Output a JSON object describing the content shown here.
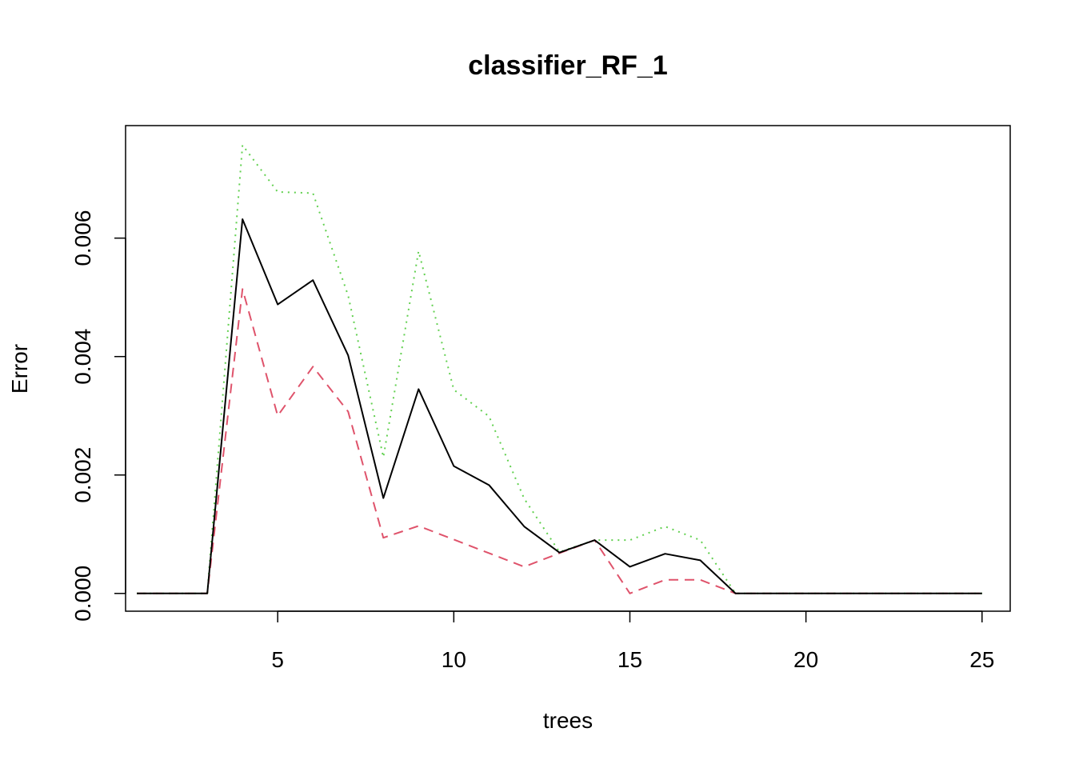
{
  "chart_data": {
    "type": "line",
    "title": "classifier_RF_1",
    "xlabel": "trees",
    "ylabel": "Error",
    "x": [
      1,
      2,
      3,
      4,
      5,
      6,
      7,
      8,
      9,
      10,
      11,
      12,
      13,
      14,
      15,
      16,
      17,
      18,
      19,
      20,
      21,
      22,
      23,
      24,
      25
    ],
    "xlim": [
      0.68,
      25.8
    ],
    "ylim": [
      -0.0003,
      0.0079
    ],
    "xticks": [
      5,
      10,
      15,
      20,
      25
    ],
    "xtick_labels": [
      "5",
      "10",
      "15",
      "20",
      "25"
    ],
    "yticks": [
      0,
      0.002,
      0.004,
      0.006
    ],
    "ytick_labels": [
      "0.000",
      "0.002",
      "0.004",
      "0.006"
    ],
    "grid": false,
    "legend": "none",
    "series": [
      {
        "color": "#000000",
        "dash": "solid",
        "values": [
          0,
          0,
          0,
          0.00632,
          0.00488,
          0.00529,
          0.00402,
          0.00161,
          0.00345,
          0.00215,
          0.00183,
          0.00113,
          0.00069,
          0.0009,
          0.00045,
          0.00067,
          0.00056,
          0,
          0,
          0,
          0,
          0,
          0,
          0,
          0
        ]
      },
      {
        "color": "#DF536B",
        "dash": "dashed",
        "values": [
          0,
          0,
          0,
          0.00514,
          0.003,
          0.00383,
          0.00307,
          0.00094,
          0.00114,
          0.00091,
          0.00068,
          0.00045,
          0.00068,
          0.0009,
          0,
          0.00023,
          0.00023,
          0,
          0,
          0,
          0,
          0,
          0,
          0,
          0
        ]
      },
      {
        "color": "#61D04F",
        "dash": "dotted",
        "values": [
          0,
          0,
          0,
          0.00757,
          0.00678,
          0.00676,
          0.00503,
          0.0023,
          0.00578,
          0.00344,
          0.00299,
          0.0016,
          0.0007,
          0.0009,
          0.0009,
          0.00113,
          0.0009,
          0,
          0,
          0,
          0,
          0,
          0,
          0,
          0
        ]
      }
    ]
  }
}
